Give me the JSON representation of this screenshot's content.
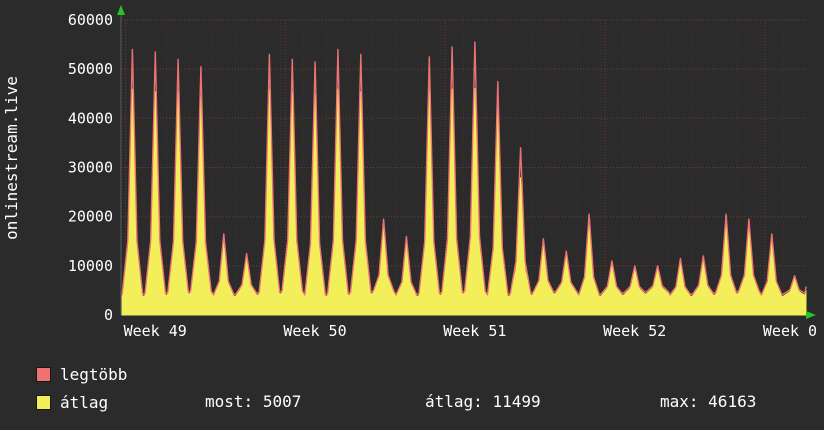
{
  "app": {
    "background": "#2b2b2b"
  },
  "vertical_title": "onlinestream.live",
  "legend": [
    {
      "label": "legtöbb",
      "color": "#ee7272"
    },
    {
      "label": "átlag",
      "color": "#f2ef5a"
    }
  ],
  "stats": [
    {
      "label": "most:",
      "value": "5007"
    },
    {
      "label": "átlag:",
      "value": "11499"
    },
    {
      "label": "max:",
      "value": "46163"
    }
  ],
  "chart_data": {
    "type": "line",
    "title": "",
    "ylabel": "onlinestream.live",
    "xlabel": "",
    "ylim": [
      0,
      60000
    ],
    "yticks": [
      0,
      10000,
      20000,
      30000,
      40000,
      50000,
      60000
    ],
    "days": 30,
    "x_week_labels": [
      {
        "label": "Week 49",
        "day": 0.2
      },
      {
        "label": "Week 50",
        "day": 7.2
      },
      {
        "label": "Week 51",
        "day": 14.2
      },
      {
        "label": "Week 52",
        "day": 21.2
      },
      {
        "label": "Week 0",
        "day": 28.2
      }
    ],
    "valley_approx": 4000,
    "series": [
      {
        "name": "legtöbb",
        "style": "line",
        "color": "#ee7272",
        "end_value": 5800,
        "peaks": [
          54000,
          53500,
          52000,
          50500,
          16500,
          12500,
          53000,
          52000,
          51500,
          54000,
          53000,
          19500,
          16000,
          52500,
          54500,
          55500,
          47500,
          34000,
          15500,
          13000,
          20500,
          11000,
          10000,
          10000,
          11500,
          12000,
          20500,
          19500,
          16500,
          8000
        ]
      },
      {
        "name": "átlag",
        "style": "area",
        "color": "#f2ef5a",
        "end_value": 5007,
        "peaks": [
          46000,
          45500,
          45500,
          44500,
          16000,
          12000,
          46000,
          45500,
          45000,
          46000,
          45500,
          19000,
          15500,
          46000,
          46000,
          46163,
          45500,
          28000,
          15000,
          12500,
          20000,
          10500,
          9500,
          9500,
          11000,
          11500,
          20000,
          19000,
          16000,
          7500
        ]
      }
    ],
    "colors": {
      "grid": "#7a3838",
      "grid_minor": "#443030",
      "axis": "#9a9a9a",
      "arrow": "#27c427",
      "text": "#ffffff"
    },
    "legend_position": "bottom",
    "grid": true
  }
}
